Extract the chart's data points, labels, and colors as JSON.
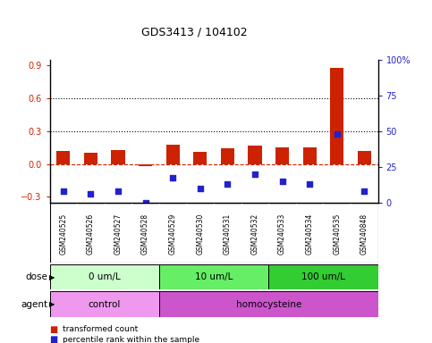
{
  "title": "GDS3413 / 104102",
  "samples": [
    "GSM240525",
    "GSM240526",
    "GSM240527",
    "GSM240528",
    "GSM240529",
    "GSM240530",
    "GSM240531",
    "GSM240532",
    "GSM240533",
    "GSM240534",
    "GSM240535",
    "GSM240848"
  ],
  "transformed_count": [
    0.12,
    0.1,
    0.13,
    -0.02,
    0.18,
    0.11,
    0.14,
    0.17,
    0.15,
    0.15,
    0.88,
    0.12
  ],
  "percentile_rank_pct": [
    8,
    6,
    8,
    0,
    17,
    10,
    13,
    20,
    15,
    13,
    48,
    8
  ],
  "ylim_left": [
    -0.35,
    0.95
  ],
  "ylim_right": [
    0,
    100
  ],
  "yticks_left": [
    -0.3,
    0.0,
    0.3,
    0.6,
    0.9
  ],
  "yticks_right": [
    0,
    25,
    50,
    75,
    100
  ],
  "ytick_labels_right": [
    "0",
    "25",
    "50",
    "75",
    "100%"
  ],
  "hlines": [
    0.3,
    0.6
  ],
  "dose_groups": [
    {
      "label": "0 um/L",
      "start": 0,
      "end": 4,
      "color": "#ccffcc"
    },
    {
      "label": "10 um/L",
      "start": 4,
      "end": 8,
      "color": "#66ee66"
    },
    {
      "label": "100 um/L",
      "start": 8,
      "end": 12,
      "color": "#33cc33"
    }
  ],
  "agent_groups": [
    {
      "label": "control",
      "start": 0,
      "end": 4,
      "color": "#ee99ee"
    },
    {
      "label": "homocysteine",
      "start": 4,
      "end": 12,
      "color": "#cc55cc"
    }
  ],
  "bar_color": "#cc2200",
  "scatter_color": "#2222cc",
  "zero_line_color": "#cc2200",
  "grid_color": "#000000",
  "legend_items": [
    {
      "label": "transformed count",
      "color": "#cc2200"
    },
    {
      "label": "percentile rank within the sample",
      "color": "#2222cc"
    }
  ],
  "left_tick_color": "#cc2200",
  "right_tick_color": "#2222cc"
}
